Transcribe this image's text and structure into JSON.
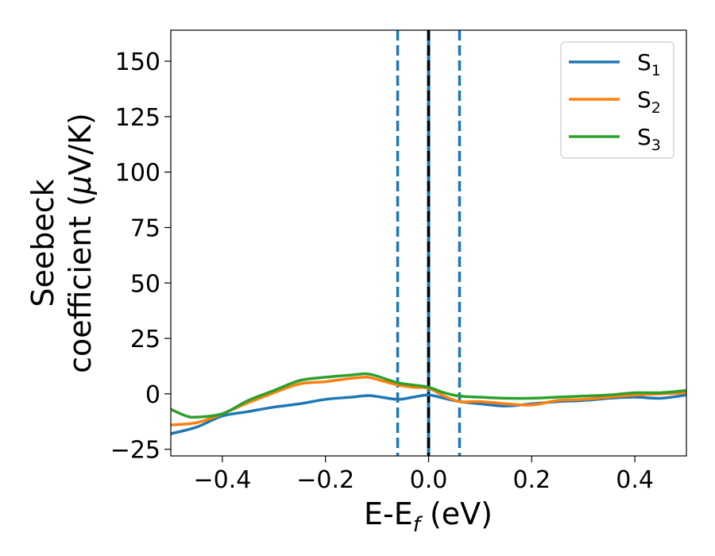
{
  "chart_data": {
    "type": "line",
    "xlabel": {
      "base": "E-E",
      "sub": "f",
      "rest": " (eV)"
    },
    "ylabel": {
      "line1": "Seebeck",
      "line2_pre": "coefficient  (",
      "mu": "μ",
      "line2_post": "V/K)"
    },
    "xlim": [
      -0.5,
      0.5
    ],
    "ylim": [
      -28,
      164
    ],
    "xticks": [
      -0.4,
      -0.2,
      0.0,
      0.2,
      0.4
    ],
    "xtick_labels": [
      "−0.4",
      "−0.2",
      "0.0",
      "0.2",
      "0.4"
    ],
    "yticks": [
      -25,
      0,
      25,
      50,
      75,
      100,
      125,
      150
    ],
    "ytick_labels": [
      "−25",
      "0",
      "25",
      "50",
      "75",
      "100",
      "125",
      "150"
    ],
    "grid": false,
    "legend_position": "top-right",
    "vlines": [
      {
        "x": -0.06,
        "style": "dashed",
        "color": "#1f77b4"
      },
      {
        "x": 0.06,
        "style": "dashed",
        "color": "#1f77b4"
      },
      {
        "x": 0.0,
        "style": "dashed",
        "color": "#000000"
      }
    ],
    "series": [
      {
        "name": "S",
        "sub": "1",
        "color": "#1f77b4",
        "x": [
          -0.5,
          -0.45,
          -0.4,
          -0.35,
          -0.3,
          -0.25,
          -0.2,
          -0.15,
          -0.12,
          -0.1,
          -0.06,
          -0.03,
          0.0,
          0.03,
          0.06,
          0.1,
          0.15,
          0.2,
          0.25,
          0.3,
          0.35,
          0.4,
          0.45,
          0.5
        ],
        "y": [
          -18,
          -15,
          -10,
          -8,
          -6,
          -4.5,
          -2.5,
          -1.5,
          -0.8,
          -1.2,
          -2.5,
          -1.5,
          -0.5,
          -2,
          -3.5,
          -4.5,
          -5.5,
          -4.5,
          -3.5,
          -3,
          -2,
          -1.5,
          -2,
          -0.5
        ]
      },
      {
        "name": "S",
        "sub": "2",
        "color": "#ff7f0e",
        "x": [
          -0.5,
          -0.45,
          -0.4,
          -0.35,
          -0.3,
          -0.25,
          -0.2,
          -0.15,
          -0.12,
          -0.1,
          -0.06,
          -0.03,
          0.0,
          0.03,
          0.06,
          0.1,
          0.15,
          0.2,
          0.25,
          0.3,
          0.35,
          0.4,
          0.45,
          0.5
        ],
        "y": [
          -14,
          -13,
          -9,
          -4,
          0.5,
          4.5,
          5.5,
          7,
          7.5,
          6.5,
          4,
          3,
          2.5,
          -1,
          -3.5,
          -3.5,
          -4.5,
          -5,
          -3,
          -2.5,
          -1.5,
          -0.5,
          0,
          0.5
        ]
      },
      {
        "name": "S",
        "sub": "3",
        "color": "#2ca02c",
        "x": [
          -0.5,
          -0.47,
          -0.45,
          -0.4,
          -0.35,
          -0.3,
          -0.25,
          -0.2,
          -0.15,
          -0.12,
          -0.1,
          -0.06,
          -0.03,
          0.0,
          0.03,
          0.06,
          0.1,
          0.15,
          0.2,
          0.25,
          0.3,
          0.35,
          0.4,
          0.45,
          0.5
        ],
        "y": [
          -7,
          -10,
          -10.5,
          -9,
          -3,
          1.5,
          6,
          7.5,
          8.5,
          9,
          8,
          5,
          4,
          3,
          0.5,
          -1,
          -1.5,
          -2,
          -2,
          -1.5,
          -1,
          -0.5,
          0.5,
          0.5,
          1.5
        ]
      }
    ]
  }
}
